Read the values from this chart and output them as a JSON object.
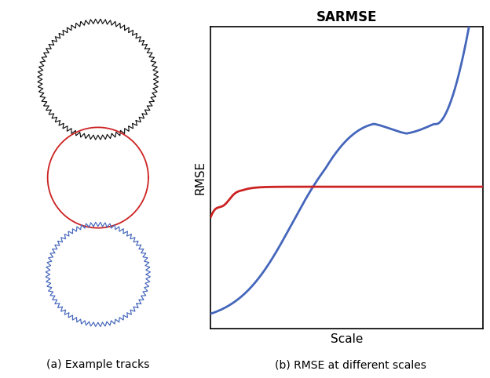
{
  "title_right": "SARMSE",
  "xlabel_right": "Scale",
  "ylabel_right": "RMSE",
  "caption_left": "(a) Example tracks",
  "caption_right": "(b) RMSE at different scales",
  "black_circle_color": "#111111",
  "red_circle_color": "#cc2222",
  "blue_circle_color": "#4466bb",
  "blue_line_color": "#4466bb",
  "red_line_color": "#cc2222",
  "background": "#ffffff",
  "gear_n_teeth": 38,
  "gear_tooth_amp": 0.06,
  "gear_R": 0.72,
  "wavy_n_waves": 34,
  "wavy_amp": 0.055,
  "wavy_R": 0.62
}
